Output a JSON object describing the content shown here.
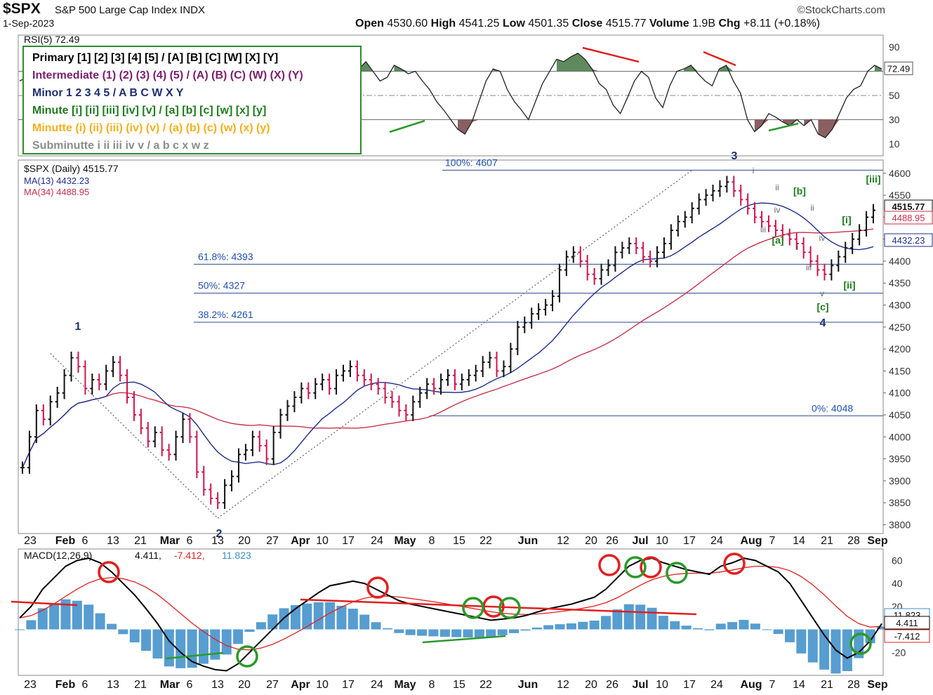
{
  "header": {
    "symbol": "$SPX",
    "description": "S&P 500 Large Cap Index  INDX",
    "date": "1-Sep-2023",
    "brand": "©StockCharts.com",
    "open_label": "Open",
    "open": "4530.60",
    "high_label": "High",
    "high": "4541.25",
    "low_label": "Low",
    "low": "4501.35",
    "close_label": "Close",
    "close": "4515.77",
    "volume_label": "Volume",
    "volume": "1.9B",
    "chg_label": "Chg",
    "chg": "+8.11 (+0.18%)"
  },
  "legend": [
    {
      "text": "Primary [1] [2] [3] [4] [5] / [A] [B] [C] [W] [X] [Y]",
      "color": "#000000"
    },
    {
      "text": "Intermediate (1) (2) (3) (4) (5) / (A) (B) (C) (W) (X) (Y)",
      "color": "#7b1e6e"
    },
    {
      "text": "Minor 1 2 3 4 5 / A B C W X Y",
      "color": "#1f2f6e"
    },
    {
      "text": "Minute [i] [ii] [iii] [iv] [v] / [a] [b] [c] [w] [x] [y]",
      "color": "#1e7b1e"
    },
    {
      "text": "Minutte (i) (ii) (iii) (iv) (v) / (a) (b) (c) (w) (x) (y)",
      "color": "#f2b01e"
    },
    {
      "text": "Subminutte i ii iii iv v / a b c x w z",
      "color": "#8c8c8c"
    }
  ],
  "chart_data": [
    {
      "type": "line",
      "panel": "rsi",
      "title": "RSI(5) 72.49",
      "ylim": [
        0,
        100
      ],
      "levels": [
        70,
        50,
        30
      ],
      "ticks": [
        "90",
        "70",
        "50",
        "30",
        "10"
      ],
      "last_label": "72.49",
      "values": [
        62,
        65,
        78,
        85,
        82,
        75,
        58,
        50,
        62,
        68,
        60,
        45,
        32,
        40,
        52,
        45,
        38,
        28,
        18,
        10,
        20,
        38,
        42,
        58,
        68,
        72,
        80,
        72,
        55,
        60,
        65,
        70,
        60,
        42,
        30,
        28,
        45,
        58,
        72,
        75,
        68,
        72,
        75,
        68,
        62,
        70,
        75,
        65,
        72,
        78,
        70,
        62,
        65,
        75,
        72,
        68,
        70,
        62,
        55,
        45,
        38,
        30,
        22,
        18,
        28,
        45,
        62,
        72,
        70,
        55,
        45,
        38,
        30,
        45,
        60,
        70,
        80,
        78,
        82,
        85,
        80,
        72,
        60,
        55,
        42,
        35,
        48,
        62,
        70,
        65,
        48,
        40,
        58,
        70,
        72,
        75,
        68,
        62,
        58,
        72,
        75,
        62,
        52,
        30,
        20,
        25,
        35,
        32,
        28,
        25,
        30,
        25,
        30,
        18,
        15,
        22,
        35,
        48,
        55,
        58,
        70,
        75,
        72
      ]
    },
    {
      "type": "line",
      "panel": "price",
      "title": "$SPX (Daily) 4515.77",
      "ylim": [
        3780,
        4630
      ],
      "ticks": [
        "4600",
        "4550",
        "4500",
        "4450",
        "4400",
        "4350",
        "4300",
        "4250",
        "4200",
        "4150",
        "4100",
        "4050",
        "4000",
        "3950",
        "3900",
        "3850",
        "3800"
      ],
      "x_ticks": [
        "23",
        "Feb",
        "6",
        "13",
        "21",
        "Mar",
        "6",
        "13",
        "20",
        "27",
        "Apr",
        "10",
        "17",
        "24",
        "May",
        "8",
        "15",
        "22",
        "Jun",
        "12",
        "20",
        "26",
        "Jul",
        "10",
        "17",
        "24",
        "Aug",
        "7",
        "14",
        "21",
        "28",
        "Sep"
      ],
      "series": [
        {
          "name": "MA(13) 4432.23",
          "color": "#1f2f8c",
          "last_label": "4432.23"
        },
        {
          "name": "MA(34) 4488.95",
          "color": "#c8324b",
          "last_label": "4488.95"
        }
      ],
      "close": [
        3930,
        4000,
        4060,
        4040,
        4080,
        4100,
        4140,
        4180,
        4160,
        4110,
        4130,
        4120,
        4150,
        4170,
        4140,
        4090,
        4050,
        4020,
        3990,
        4010,
        3970,
        3960,
        4000,
        4040,
        4000,
        3920,
        3880,
        3860,
        3850,
        3890,
        3910,
        3960,
        3970,
        4000,
        3980,
        3950,
        4010,
        4050,
        4070,
        4090,
        4110,
        4100,
        4120,
        4130,
        4110,
        4140,
        4150,
        4160,
        4140,
        4130,
        4120,
        4110,
        4090,
        4080,
        4060,
        4050,
        4080,
        4100,
        4120,
        4110,
        4130,
        4140,
        4120,
        4130,
        4140,
        4150,
        4170,
        4180,
        4150,
        4160,
        4200,
        4250,
        4260,
        4280,
        4290,
        4300,
        4320,
        4380,
        4410,
        4420,
        4400,
        4370,
        4360,
        4380,
        4390,
        4420,
        4430,
        4440,
        4430,
        4410,
        4400,
        4420,
        4440,
        4470,
        4490,
        4500,
        4520,
        4540,
        4550,
        4560,
        4570,
        4580,
        4560,
        4540,
        4520,
        4500,
        4490,
        4480,
        4470,
        4460,
        4450,
        4440,
        4420,
        4400,
        4380,
        4370,
        4390,
        4410,
        4430,
        4450,
        4470,
        4500,
        4515.77
      ],
      "last_label": "4515.77",
      "fibonacci": [
        {
          "label": "100%: 4607",
          "value": 4607
        },
        {
          "label": "61.8%: 4393",
          "value": 4393
        },
        {
          "label": "50%: 4327",
          "value": 4327
        },
        {
          "label": "38.2%: 4261",
          "value": 4261
        },
        {
          "label": "0%: 4048",
          "value": 4048
        }
      ],
      "wave_labels": {
        "minor": [
          "1",
          "2",
          "3",
          "4"
        ],
        "minute": [
          "[a]",
          "[b]",
          "[c]",
          "[i]",
          "[ii]",
          "[iii]"
        ],
        "subminutte": [
          "i",
          "ii",
          "iii",
          "iv",
          "i",
          "ii",
          "iii",
          "iv",
          "v"
        ]
      }
    },
    {
      "type": "line",
      "panel": "macd",
      "title": "MACD(12,26,9)",
      "ylim": [
        -40,
        70
      ],
      "ticks": [
        "60",
        "40",
        "20",
        "0",
        "-20"
      ],
      "series": [
        {
          "name": "4.411",
          "color": "#000000",
          "last_label": "4.411",
          "values": [
            10,
            20,
            35,
            45,
            55,
            60,
            62,
            58,
            50,
            40,
            30,
            18,
            5,
            -10,
            -20,
            -28,
            -32,
            -35,
            -36,
            -30,
            -20,
            -10,
            0,
            10,
            18,
            25,
            32,
            38,
            40,
            42,
            40,
            35,
            30,
            25,
            22,
            20,
            18,
            16,
            14,
            12,
            10,
            8,
            9,
            10,
            12,
            15,
            18,
            20,
            22,
            25,
            28,
            35,
            45,
            55,
            60,
            62,
            58,
            55,
            52,
            50,
            48,
            55,
            58,
            62,
            60,
            55,
            50,
            40,
            25,
            10,
            -5,
            -18,
            -25,
            -20,
            -10,
            5
          ]
        },
        {
          "name": "-7.412",
          "color": "#e02020",
          "last_label": "-7.412"
        },
        {
          "name": "11.823",
          "color": "#3a8cc8",
          "last_label": "11.823"
        }
      ]
    }
  ]
}
